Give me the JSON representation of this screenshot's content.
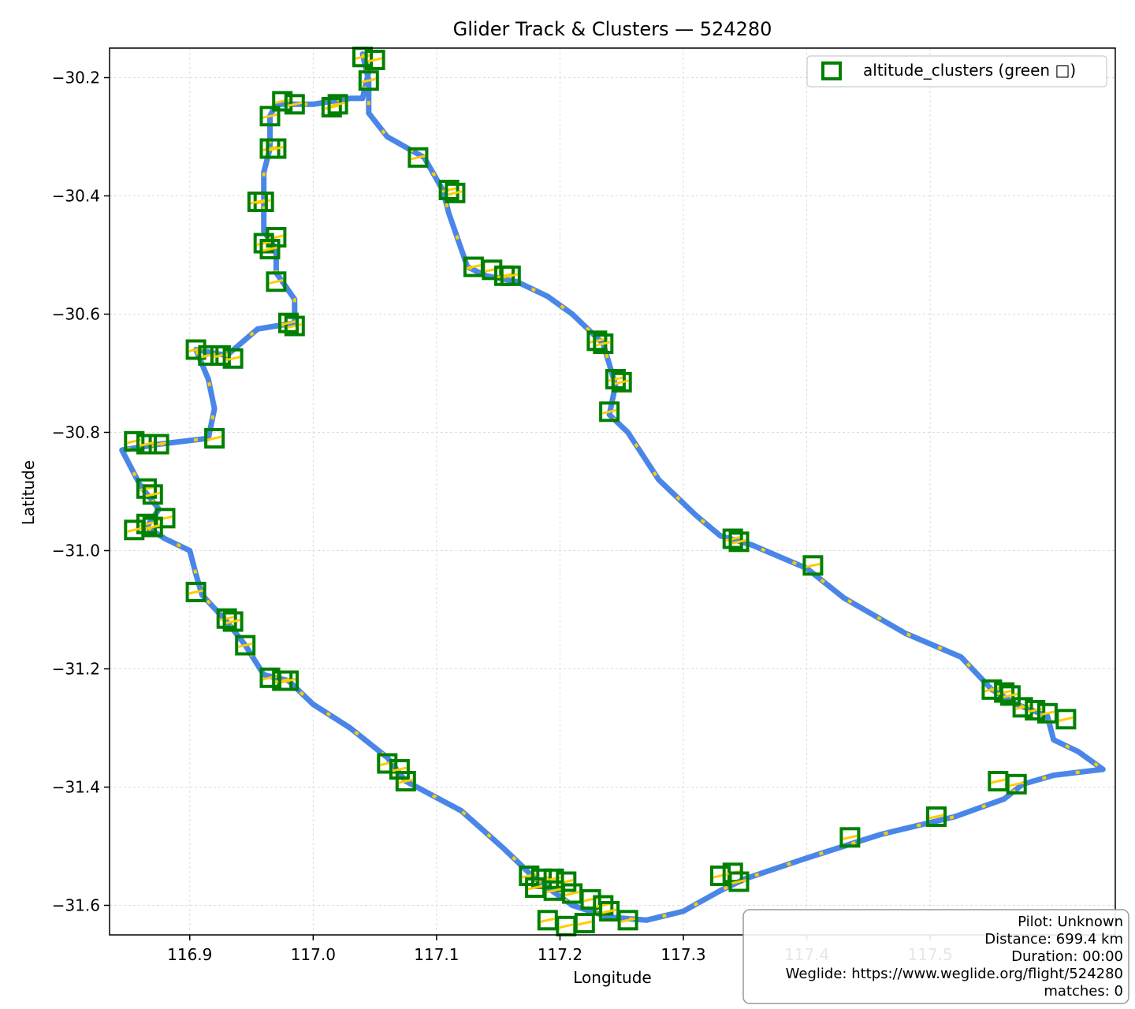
{
  "chart_data": {
    "type": "scatter",
    "title": "Glider Track & Clusters — 524280",
    "xlabel": "Longitude",
    "ylabel": "Latitude",
    "xlim": [
      116.835,
      117.65
    ],
    "ylim": [
      -31.65,
      -30.15
    ],
    "xticks": [
      116.9,
      117.0,
      117.1,
      117.2,
      117.3,
      117.4,
      117.5
    ],
    "xtick_labels": [
      "116.9",
      "117.0",
      "117.1",
      "117.2",
      "117.3",
      "117.4",
      "117.5"
    ],
    "yticks": [
      -30.2,
      -30.4,
      -30.6,
      -30.8,
      -31.0,
      -31.2,
      -31.4,
      -31.6
    ],
    "ytick_labels": [
      "−30.2",
      "−30.4",
      "−30.6",
      "−30.8",
      "−31.0",
      "−31.2",
      "−31.4",
      "−31.6"
    ],
    "grid": true,
    "legend": {
      "placement": "top-right",
      "entries": [
        {
          "label": "altitude_clusters (green □)",
          "marker": "open-square",
          "color": "#008000"
        }
      ]
    },
    "track": {
      "line_color": "#4a86e8",
      "accent_color": "#ffcc00",
      "points": [
        [
          117.04,
          -30.16
        ],
        [
          117.045,
          -30.19
        ],
        [
          117.04,
          -30.235
        ],
        [
          117.03,
          -30.235
        ],
        [
          117.0,
          -30.245
        ],
        [
          116.97,
          -30.245
        ],
        [
          116.965,
          -30.265
        ],
        [
          116.965,
          -30.32
        ],
        [
          116.96,
          -30.36
        ],
        [
          116.96,
          -30.41
        ],
        [
          116.96,
          -30.46
        ],
        [
          116.97,
          -30.49
        ],
        [
          116.97,
          -30.53
        ],
        [
          116.985,
          -30.575
        ],
        [
          116.985,
          -30.615
        ],
        [
          116.97,
          -30.62
        ],
        [
          116.955,
          -30.625
        ],
        [
          116.93,
          -30.67
        ],
        [
          116.905,
          -30.66
        ],
        [
          116.915,
          -30.71
        ],
        [
          116.92,
          -30.76
        ],
        [
          116.915,
          -30.81
        ],
        [
          116.875,
          -30.82
        ],
        [
          116.845,
          -30.83
        ],
        [
          116.86,
          -30.89
        ],
        [
          116.875,
          -30.93
        ],
        [
          116.865,
          -30.96
        ],
        [
          116.88,
          -30.98
        ],
        [
          116.9,
          -31.0
        ],
        [
          116.905,
          -31.04
        ],
        [
          116.91,
          -31.075
        ],
        [
          116.93,
          -31.12
        ],
        [
          116.945,
          -31.16
        ],
        [
          116.96,
          -31.21
        ],
        [
          116.98,
          -31.22
        ],
        [
          117.0,
          -31.26
        ],
        [
          117.03,
          -31.3
        ],
        [
          117.06,
          -31.35
        ],
        [
          117.075,
          -31.39
        ],
        [
          117.12,
          -31.44
        ],
        [
          117.155,
          -31.505
        ],
        [
          117.18,
          -31.555
        ],
        [
          117.21,
          -31.6
        ],
        [
          117.24,
          -31.62
        ],
        [
          117.27,
          -31.625
        ],
        [
          117.3,
          -31.61
        ],
        [
          117.33,
          -31.575
        ],
        [
          117.35,
          -31.555
        ],
        [
          117.4,
          -31.52
        ],
        [
          117.46,
          -31.48
        ],
        [
          117.52,
          -31.45
        ],
        [
          117.56,
          -31.42
        ],
        [
          117.575,
          -31.395
        ],
        [
          117.6,
          -31.38
        ],
        [
          117.64,
          -31.37
        ],
        [
          117.62,
          -31.34
        ],
        [
          117.6,
          -31.32
        ],
        [
          117.595,
          -31.28
        ],
        [
          117.57,
          -31.26
        ],
        [
          117.55,
          -31.235
        ],
        [
          117.525,
          -31.18
        ],
        [
          117.48,
          -31.14
        ],
        [
          117.43,
          -31.08
        ],
        [
          117.4,
          -31.03
        ],
        [
          117.355,
          -30.99
        ],
        [
          117.33,
          -30.975
        ],
        [
          117.31,
          -30.94
        ],
        [
          117.28,
          -30.88
        ],
        [
          117.255,
          -30.8
        ],
        [
          117.24,
          -30.77
        ],
        [
          117.245,
          -30.72
        ],
        [
          117.235,
          -30.65
        ],
        [
          117.21,
          -30.6
        ],
        [
          117.19,
          -30.57
        ],
        [
          117.165,
          -30.545
        ],
        [
          117.14,
          -30.535
        ],
        [
          117.125,
          -30.52
        ],
        [
          117.12,
          -30.49
        ],
        [
          117.11,
          -30.43
        ],
        [
          117.105,
          -30.39
        ],
        [
          117.09,
          -30.335
        ],
        [
          117.06,
          -30.3
        ],
        [
          117.045,
          -30.26
        ],
        [
          117.045,
          -30.205
        ],
        [
          117.04,
          -30.16
        ]
      ]
    },
    "clusters": [
      [
        117.04,
        -30.165
      ],
      [
        117.05,
        -30.17
      ],
      [
        117.045,
        -30.205
      ],
      [
        117.015,
        -30.25
      ],
      [
        117.02,
        -30.245
      ],
      [
        116.975,
        -30.24
      ],
      [
        116.985,
        -30.245
      ],
      [
        116.965,
        -30.265
      ],
      [
        116.965,
        -30.32
      ],
      [
        116.97,
        -30.32
      ],
      [
        116.96,
        -30.41
      ],
      [
        116.955,
        -30.41
      ],
      [
        116.97,
        -30.47
      ],
      [
        116.96,
        -30.48
      ],
      [
        116.965,
        -30.49
      ],
      [
        116.97,
        -30.545
      ],
      [
        116.985,
        -30.62
      ],
      [
        116.98,
        -30.615
      ],
      [
        116.905,
        -30.66
      ],
      [
        116.915,
        -30.67
      ],
      [
        116.925,
        -30.67
      ],
      [
        116.935,
        -30.675
      ],
      [
        116.92,
        -30.81
      ],
      [
        116.855,
        -30.815
      ],
      [
        116.875,
        -30.82
      ],
      [
        116.865,
        -30.82
      ],
      [
        116.865,
        -30.895
      ],
      [
        116.87,
        -30.905
      ],
      [
        116.88,
        -30.945
      ],
      [
        116.865,
        -30.955
      ],
      [
        116.855,
        -30.965
      ],
      [
        116.87,
        -30.96
      ],
      [
        116.905,
        -31.07
      ],
      [
        116.93,
        -31.115
      ],
      [
        116.935,
        -31.12
      ],
      [
        116.945,
        -31.16
      ],
      [
        116.965,
        -31.215
      ],
      [
        116.975,
        -31.22
      ],
      [
        116.98,
        -31.22
      ],
      [
        117.06,
        -31.36
      ],
      [
        117.07,
        -31.37
      ],
      [
        117.075,
        -31.39
      ],
      [
        117.085,
        -30.335
      ],
      [
        117.11,
        -30.39
      ],
      [
        117.115,
        -30.395
      ],
      [
        117.13,
        -30.52
      ],
      [
        117.145,
        -30.525
      ],
      [
        117.155,
        -30.535
      ],
      [
        117.16,
        -30.535
      ],
      [
        117.23,
        -30.645
      ],
      [
        117.235,
        -30.65
      ],
      [
        117.245,
        -30.71
      ],
      [
        117.25,
        -30.715
      ],
      [
        117.24,
        -30.765
      ],
      [
        117.34,
        -30.98
      ],
      [
        117.345,
        -30.985
      ],
      [
        117.405,
        -31.025
      ],
      [
        117.175,
        -31.55
      ],
      [
        117.185,
        -31.555
      ],
      [
        117.195,
        -31.555
      ],
      [
        117.205,
        -31.56
      ],
      [
        117.18,
        -31.57
      ],
      [
        117.195,
        -31.575
      ],
      [
        117.21,
        -31.58
      ],
      [
        117.225,
        -31.59
      ],
      [
        117.235,
        -31.6
      ],
      [
        117.24,
        -31.61
      ],
      [
        117.19,
        -31.625
      ],
      [
        117.205,
        -31.635
      ],
      [
        117.22,
        -31.63
      ],
      [
        117.255,
        -31.625
      ],
      [
        117.33,
        -31.55
      ],
      [
        117.34,
        -31.545
      ],
      [
        117.345,
        -31.56
      ],
      [
        117.435,
        -31.485
      ],
      [
        117.505,
        -31.45
      ],
      [
        117.555,
        -31.39
      ],
      [
        117.57,
        -31.395
      ],
      [
        117.55,
        -31.235
      ],
      [
        117.56,
        -31.24
      ],
      [
        117.565,
        -31.245
      ],
      [
        117.575,
        -31.265
      ],
      [
        117.585,
        -31.27
      ],
      [
        117.595,
        -31.275
      ],
      [
        117.61,
        -31.285
      ]
    ]
  },
  "info_box": {
    "pilot": "Pilot: Unknown",
    "distance": "Distance: 699.4 km",
    "duration": "Duration: 00:00",
    "weglide": "Weglide: https://www.weglide.org/flight/524280",
    "matches": "matches: 0"
  }
}
